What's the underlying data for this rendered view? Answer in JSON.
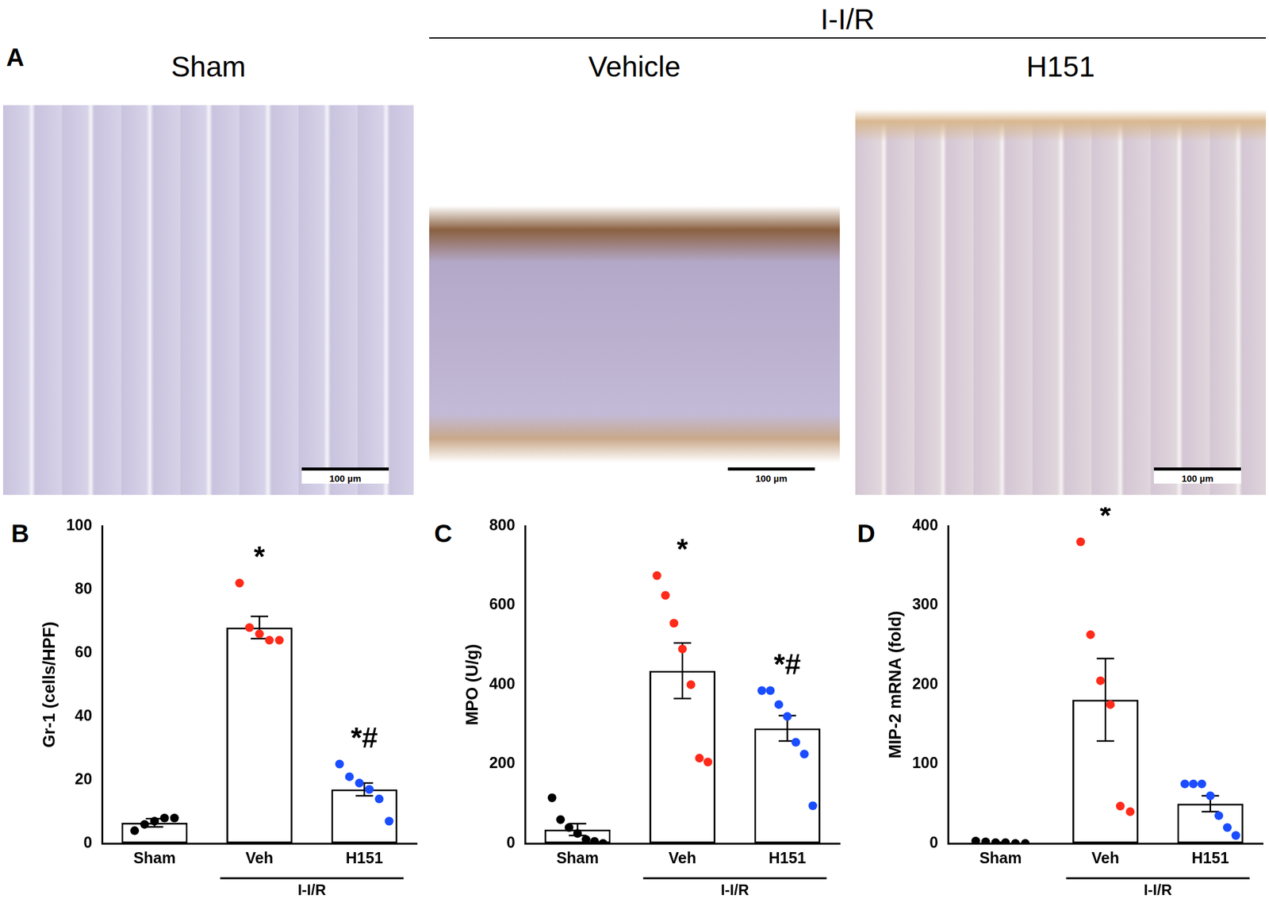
{
  "images": {
    "panel": "A",
    "group": "I-I/R",
    "scale_bar": "100 µm",
    "panels": [
      {
        "title": "Sham",
        "in_group": false
      },
      {
        "title": "Vehicle",
        "in_group": true
      },
      {
        "title": "H151",
        "in_group": true
      }
    ]
  },
  "chart_data": [
    {
      "type": "bar",
      "panel": "B",
      "y_label": "Gr-1 (cells/HPF)",
      "categories": [
        "Sham",
        "Veh",
        "H151"
      ],
      "values": [
        6.5,
        68,
        17
      ],
      "error": [
        1.3,
        3.5,
        2
      ],
      "points": [
        [
          4,
          6,
          7,
          8,
          8
        ],
        [
          82,
          68,
          66,
          64,
          64
        ],
        [
          25,
          21,
          19,
          17,
          14,
          7
        ]
      ],
      "point_colors": [
        "#000000",
        "#ff2a1a",
        "#1a4dff"
      ],
      "color": "#ffffff",
      "annotations": [
        null,
        "*",
        "*#"
      ],
      "group": {
        "label": "I-I/R",
        "categories": [
          "Veh",
          "H151"
        ]
      },
      "ylim": [
        0,
        100
      ],
      "yticks": [
        0,
        20,
        40,
        60,
        80,
        100
      ],
      "grid": false
    },
    {
      "type": "bar",
      "panel": "C",
      "y_label": "MPO (U/g)",
      "categories": [
        "Sham",
        "Veh",
        "H151"
      ],
      "values": [
        35,
        435,
        290
      ],
      "error": [
        15,
        70,
        32
      ],
      "points": [
        [
          115,
          60,
          40,
          25,
          10,
          5,
          0
        ],
        [
          675,
          625,
          555,
          490,
          400,
          215,
          205
        ],
        [
          385,
          385,
          350,
          320,
          255,
          225,
          95
        ]
      ],
      "point_colors": [
        "#000000",
        "#ff2a1a",
        "#1a4dff"
      ],
      "color": "#ffffff",
      "annotations": [
        null,
        "*",
        "*#"
      ],
      "group": {
        "label": "I-I/R",
        "categories": [
          "Veh",
          "H151"
        ]
      },
      "ylim": [
        0,
        800
      ],
      "yticks": [
        0,
        200,
        400,
        600,
        800
      ],
      "grid": false
    },
    {
      "type": "bar",
      "panel": "D",
      "y_label": "MIP-2 mRNA (fold)",
      "categories": [
        "Sham",
        "Veh",
        "H151"
      ],
      "values": [
        1,
        181,
        50
      ],
      "error": [
        0.3,
        52,
        10
      ],
      "points": [
        [
          3,
          2,
          1,
          1,
          0,
          0
        ],
        [
          380,
          263,
          205,
          175,
          47,
          40
        ],
        [
          75,
          75,
          75,
          60,
          35,
          20,
          10
        ]
      ],
      "point_colors": [
        "#000000",
        "#ff2a1a",
        "#1a4dff"
      ],
      "color": "#ffffff",
      "annotations": [
        null,
        "*",
        null
      ],
      "group": {
        "label": "I-I/R",
        "categories": [
          "Veh",
          "H151"
        ]
      },
      "ylim": [
        0,
        400
      ],
      "yticks": [
        0,
        100,
        200,
        300,
        400
      ],
      "grid": false
    }
  ]
}
